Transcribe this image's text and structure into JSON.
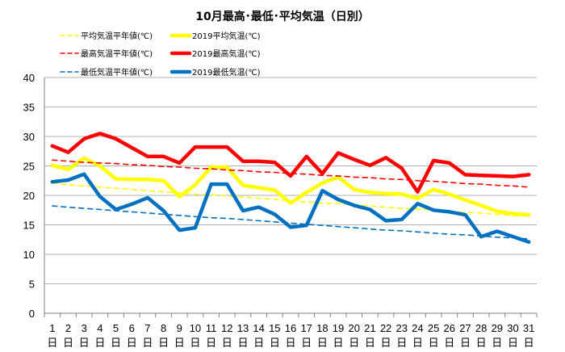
{
  "chart_data": {
    "type": "line",
    "title": "10月最高･最低･平均気温（日別）",
    "ylim": [
      0,
      40
    ],
    "yticks": [
      0,
      5,
      10,
      15,
      20,
      25,
      30,
      35,
      40
    ],
    "grid": true,
    "legend_placement": "top-left",
    "x": [
      "1",
      "2",
      "3",
      "4",
      "5",
      "6",
      "7",
      "8",
      "9",
      "10",
      "11",
      "12",
      "13",
      "14",
      "15",
      "16",
      "17",
      "18",
      "19",
      "20",
      "21",
      "22",
      "23",
      "24",
      "25",
      "26",
      "27",
      "28",
      "29",
      "30",
      "31"
    ],
    "x_unit": "日",
    "series": [
      {
        "name": "平均気温平年値(℃)",
        "color": "#ffff00",
        "style": "dashed",
        "values": [
          22.1,
          21.8,
          21.6,
          21.4,
          21.2,
          21.0,
          20.8,
          20.6,
          20.4,
          20.2,
          20.1,
          19.9,
          19.7,
          19.5,
          19.3,
          19.1,
          18.9,
          18.7,
          18.6,
          18.4,
          18.2,
          18.0,
          17.8,
          17.7,
          17.5,
          17.3,
          17.1,
          17.0,
          16.8,
          16.6,
          16.5
        ]
      },
      {
        "name": "2019平均気温(℃)",
        "color": "#ffff00",
        "style": "solid",
        "values": [
          25.1,
          24.4,
          26.3,
          25.0,
          22.8,
          22.7,
          22.7,
          22.5,
          19.8,
          21.8,
          24.8,
          24.8,
          21.7,
          21.3,
          20.9,
          18.7,
          20.5,
          22.1,
          23.1,
          21.0,
          20.5,
          20.3,
          20.2,
          19.5,
          21.0,
          20.2,
          19.2,
          18.3,
          17.3,
          16.9,
          16.7
        ]
      },
      {
        "name": "最高気温平年値(℃)",
        "color": "#ff0000",
        "style": "dashed",
        "values": [
          26.0,
          25.8,
          25.6,
          25.5,
          25.4,
          25.2,
          25.1,
          24.9,
          24.8,
          24.6,
          24.5,
          24.3,
          24.2,
          24.0,
          23.9,
          23.7,
          23.6,
          23.4,
          23.3,
          23.1,
          23.0,
          22.8,
          22.7,
          22.5,
          22.4,
          22.2,
          22.0,
          21.9,
          21.7,
          21.6,
          21.4
        ]
      },
      {
        "name": "2019最高気温(℃)",
        "color": "#ff0000",
        "style": "solid",
        "values": [
          28.4,
          27.3,
          29.6,
          30.5,
          29.6,
          28.1,
          26.6,
          26.6,
          25.5,
          28.2,
          28.2,
          28.2,
          25.8,
          25.8,
          25.6,
          23.3,
          26.6,
          23.7,
          27.2,
          26.1,
          25.1,
          26.4,
          24.6,
          20.6,
          25.9,
          25.5,
          23.5,
          23.4,
          23.3,
          23.2,
          23.5
        ]
      },
      {
        "name": "最低気温平年値(℃)",
        "color": "#0070c0",
        "style": "dashed",
        "values": [
          18.2,
          18.0,
          17.8,
          17.6,
          17.4,
          17.2,
          17.0,
          16.8,
          16.6,
          16.4,
          16.2,
          16.1,
          15.9,
          15.7,
          15.5,
          15.3,
          15.1,
          14.9,
          14.7,
          14.5,
          14.3,
          14.1,
          14.0,
          13.8,
          13.6,
          13.4,
          13.3,
          13.1,
          12.9,
          12.8,
          12.6
        ]
      },
      {
        "name": "2019最低気温(℃)",
        "color": "#0070c0",
        "style": "solid",
        "values": [
          22.3,
          22.6,
          23.6,
          19.8,
          17.6,
          18.5,
          19.6,
          17.4,
          14.1,
          14.5,
          21.9,
          21.9,
          17.4,
          18.0,
          16.8,
          14.6,
          14.9,
          20.8,
          19.3,
          18.3,
          17.6,
          15.7,
          15.9,
          18.6,
          17.5,
          17.2,
          16.7,
          13.0,
          13.9,
          13.0,
          12.1
        ]
      }
    ]
  }
}
